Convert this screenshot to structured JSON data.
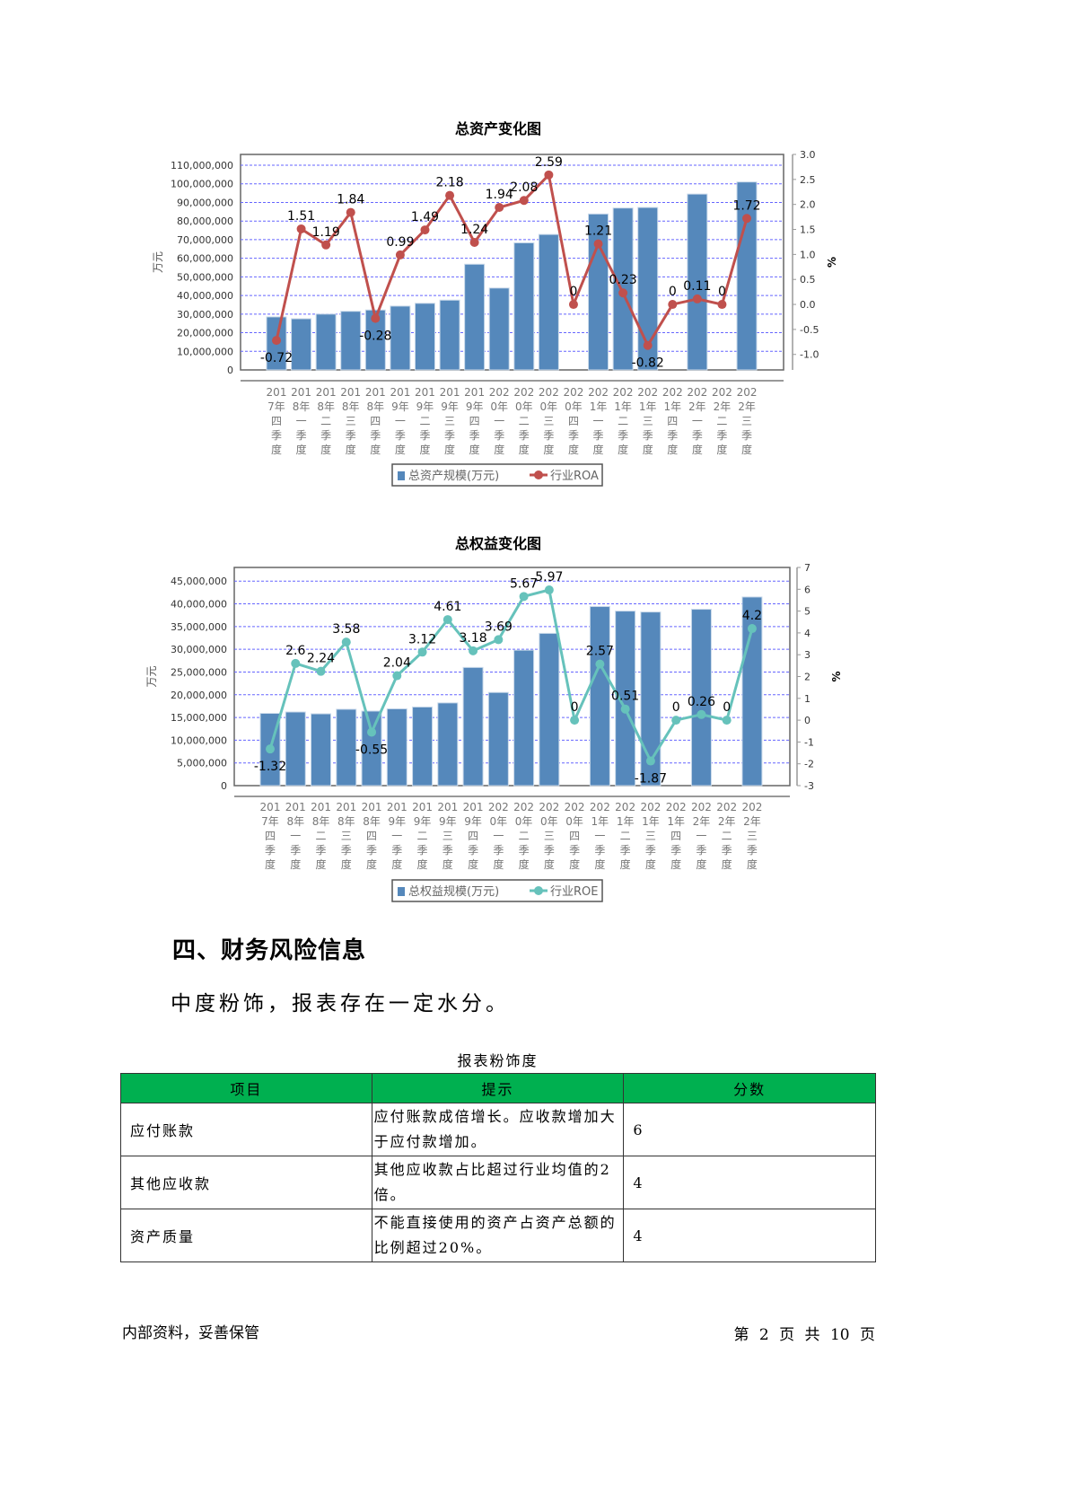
{
  "chart_data": [
    {
      "type": "bar+line",
      "title": "总资产变化图",
      "ylabel": "万元",
      "y2label": "%",
      "categories": [
        "2017年四季度",
        "2018年一季度",
        "2018年二季度",
        "2018年三季度",
        "2018年四季度",
        "2019年一季度",
        "2019年二季度",
        "2019年三季度",
        "2019年四季度",
        "2020年一季度",
        "2020年二季度",
        "2020年三季度",
        "2020年四季度",
        "2021年一季度",
        "2021年二季度",
        "2021年三季度",
        "2021年四季度",
        "2022年一季度",
        "2022年二季度",
        "2022年三季度"
      ],
      "bar_series": {
        "name": "总资产规模(万元)",
        "color": "#5588bb",
        "values": [
          28500000,
          27500000,
          30000000,
          31500000,
          32200000,
          34300000,
          35800000,
          37500000,
          56800000,
          44000000,
          68300000,
          72800000,
          null,
          83800000,
          87000000,
          87300000,
          null,
          94500000,
          null,
          101000000
        ]
      },
      "line_series": {
        "name": "行业ROA",
        "color": "#c0504d",
        "values": [
          -0.72,
          1.51,
          1.19,
          1.84,
          -0.28,
          0.99,
          1.49,
          2.18,
          1.24,
          1.94,
          2.08,
          2.59,
          0,
          1.21,
          0.23,
          -0.82,
          0,
          0.11,
          0,
          1.72
        ]
      },
      "ylim": [
        0,
        115800000
      ],
      "yticks": [
        "0",
        "10,000,000",
        "20,000,000",
        "30,000,000",
        "40,000,000",
        "50,000,000",
        "60,000,000",
        "70,000,000",
        "80,000,000",
        "90,000,000",
        "100,000,000",
        "110,000,000"
      ],
      "y2lim": [
        -1.31,
        3.0
      ],
      "y2ticks": [
        "-1.0",
        "-0.5",
        "0.0",
        "0.5",
        "1.0",
        "1.5",
        "2.0",
        "2.5",
        "3.0"
      ],
      "grid": true,
      "legend": "bottom"
    },
    {
      "type": "bar+line",
      "title": "总权益变化图",
      "ylabel": "万元",
      "y2label": "%",
      "categories": [
        "2017年四季度",
        "2018年一季度",
        "2018年二季度",
        "2018年三季度",
        "2018年四季度",
        "2019年一季度",
        "2019年二季度",
        "2019年三季度",
        "2019年四季度",
        "2020年一季度",
        "2020年二季度",
        "2020年三季度",
        "2020年四季度",
        "2021年一季度",
        "2021年二季度",
        "2021年三季度",
        "2021年四季度",
        "2022年一季度",
        "2022年二季度",
        "2022年三季度"
      ],
      "bar_series": {
        "name": "总权益规模(万元)",
        "color": "#5588bb",
        "values": [
          15900000,
          16200000,
          15800000,
          16800000,
          16400000,
          16900000,
          17300000,
          18200000,
          26000000,
          20500000,
          29800000,
          33500000,
          null,
          39400000,
          38400000,
          38200000,
          null,
          38800000,
          null,
          41500000
        ]
      },
      "line_series": {
        "name": "行业ROE",
        "color": "#66c2bb",
        "values": [
          -1.32,
          2.6,
          2.24,
          3.58,
          -0.55,
          2.04,
          3.12,
          4.61,
          3.18,
          3.69,
          5.67,
          5.97,
          0,
          2.57,
          0.51,
          -1.87,
          0,
          0.26,
          0,
          4.2
        ]
      },
      "ylim": [
        0,
        48000000
      ],
      "yticks": [
        "0",
        "5,000,000",
        "10,000,000",
        "15,000,000",
        "20,000,000",
        "25,000,000",
        "30,000,000",
        "35,000,000",
        "40,000,000",
        "45,000,000"
      ],
      "y2lim": [
        -3,
        7
      ],
      "y2ticks": [
        "-3",
        "-2",
        "-1",
        "0",
        "1",
        "2",
        "3",
        "4",
        "5",
        "6",
        "7"
      ],
      "grid": true,
      "legend": "bottom"
    }
  ],
  "section": {
    "heading": "四、财务风险信息",
    "summary": "中度粉饰，报表存在一定水分。"
  },
  "table": {
    "caption": "报表粉饰度",
    "headers": [
      "项目",
      "提示",
      "分数"
    ],
    "rows": [
      [
        "应付账款",
        "应付账款成倍增长。应收款增加大于应付款增加。",
        "6"
      ],
      [
        "其他应收款",
        "其他应收款占比超过行业均值的2倍。",
        "4"
      ],
      [
        "资产质量",
        "不能直接使用的资产占资产总额的比例超过20%。",
        "4"
      ]
    ]
  },
  "footer": {
    "left": "内部资料，妥善保管",
    "right": "第 2 页  共 10 页"
  }
}
